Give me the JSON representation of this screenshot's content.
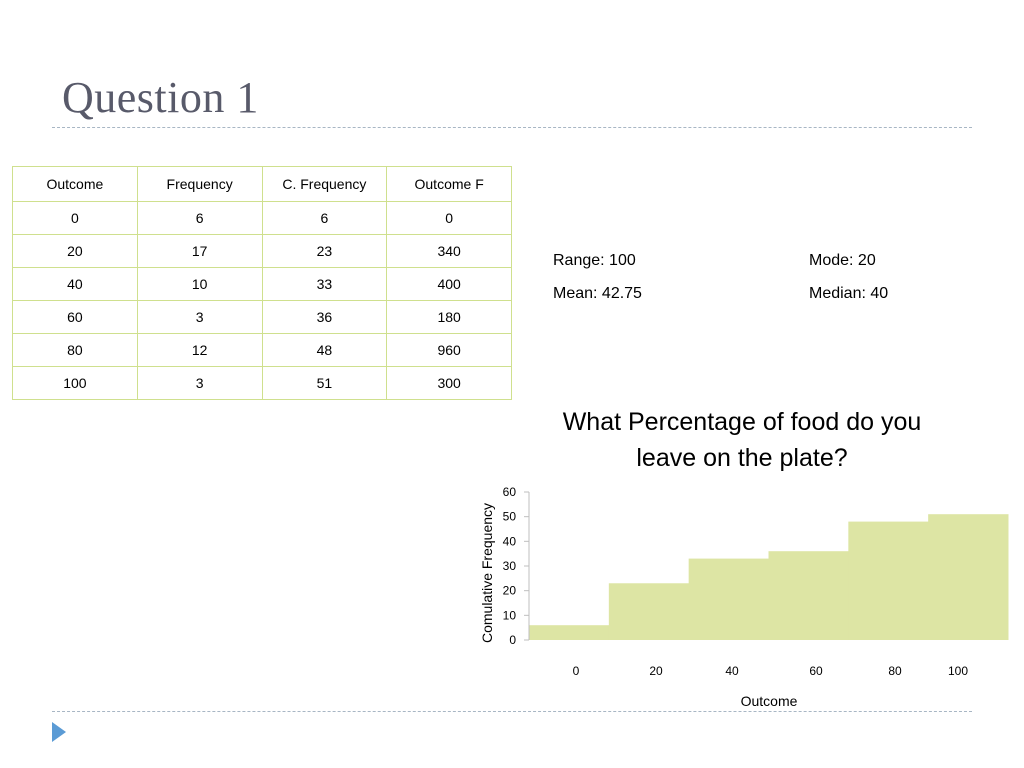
{
  "slide": {
    "title": "Question 1"
  },
  "table": {
    "headers": [
      "Outcome",
      "Frequency",
      "C. Frequency",
      "Outcome F"
    ],
    "rows": [
      [
        "0",
        "6",
        "6",
        "0"
      ],
      [
        "20",
        "17",
        "23",
        "340"
      ],
      [
        "40",
        "10",
        "33",
        "400"
      ],
      [
        "60",
        "3",
        "36",
        "180"
      ],
      [
        "80",
        "12",
        "48",
        "960"
      ],
      [
        "100",
        "3",
        "51",
        "300"
      ]
    ],
    "border_color": "#cfe08e"
  },
  "stats": {
    "range": "Range: 100",
    "mode": "Mode: 20",
    "mean": "Mean: 42.75",
    "median": "Median: 40"
  },
  "chart_data": {
    "type": "bar",
    "title_line1": "What Percentage of food do you",
    "title_line2": "leave on the plate?",
    "xlabel": "Outcome",
    "ylabel": "Comulative Frequency",
    "categories": [
      "0",
      "20",
      "40",
      "60",
      "80",
      "100"
    ],
    "values": [
      6,
      23,
      33,
      36,
      48,
      51
    ],
    "ylim": [
      0,
      60
    ],
    "yticks": [
      0,
      10,
      20,
      30,
      40,
      50,
      60
    ],
    "bar_color": "#dde5a4",
    "grid": false,
    "legend": "none"
  },
  "colors": {
    "title": "#585a6a",
    "rule": "#a8b6c4",
    "nav_arrow": "#5b9bd5"
  },
  "icons": {
    "nav": "triangle-right-icon"
  }
}
